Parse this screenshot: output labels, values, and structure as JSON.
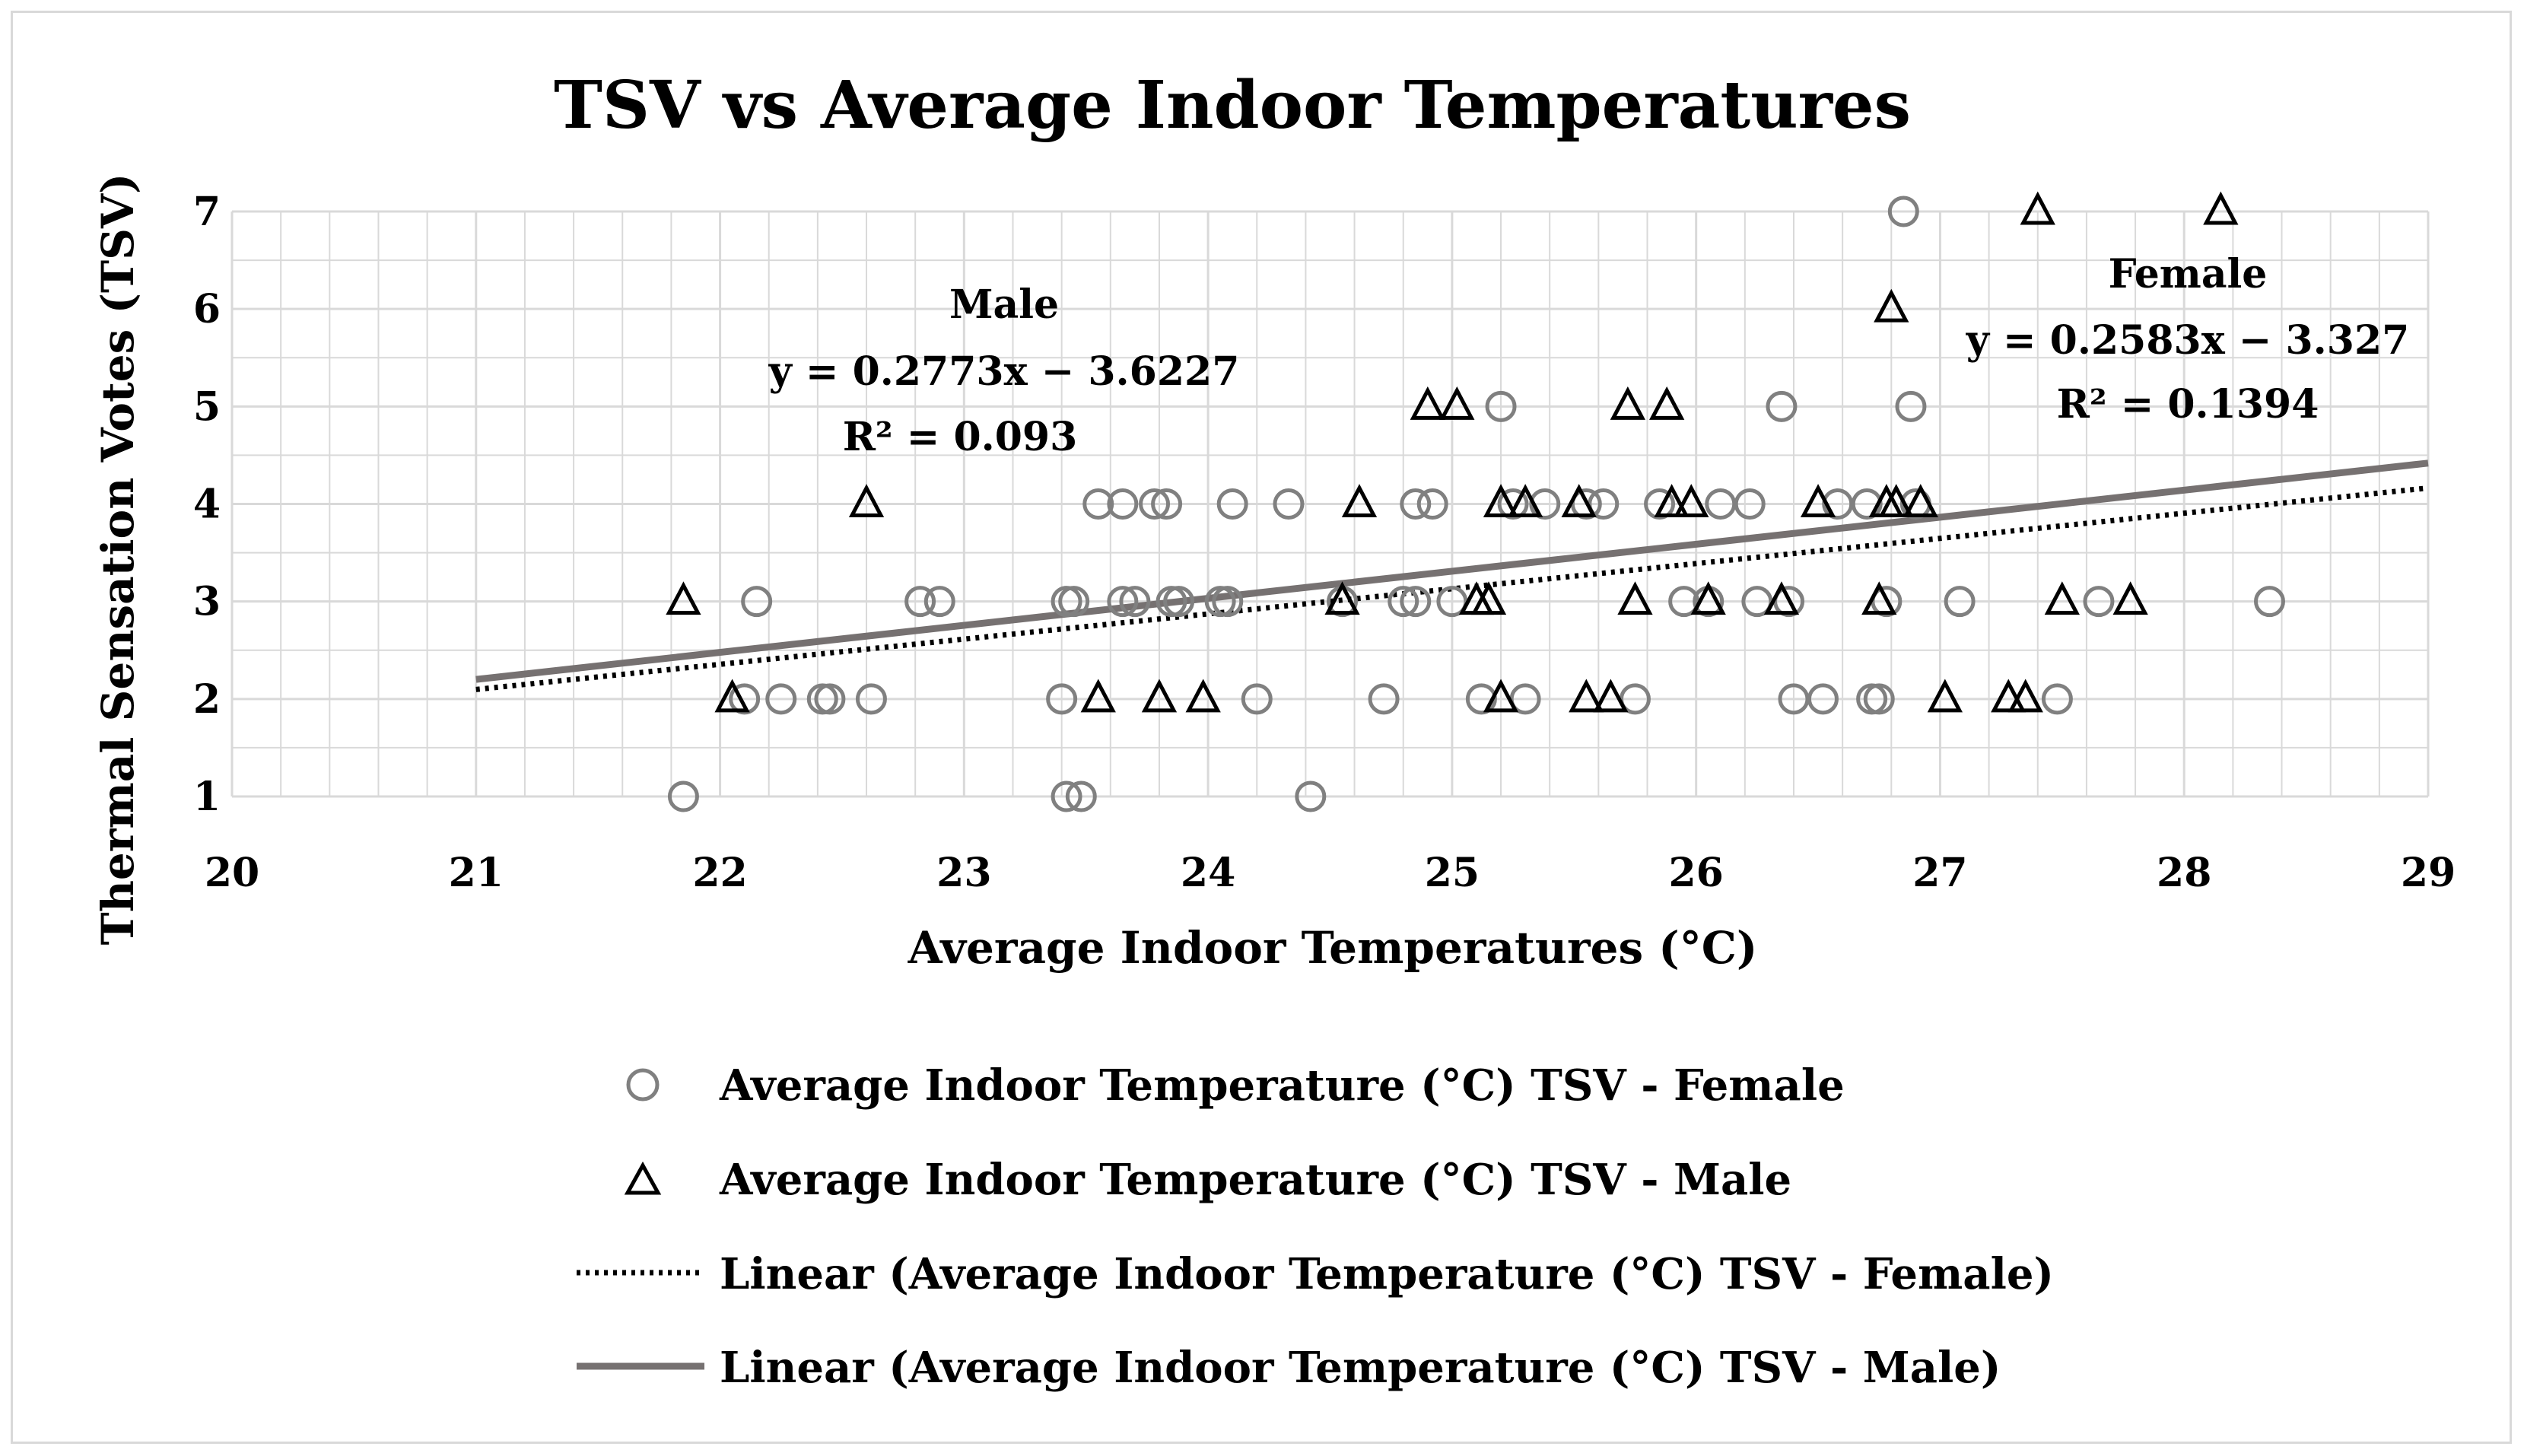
{
  "chart_data": {
    "type": "scatter",
    "title": "TSV vs Average Indoor Temperatures",
    "xlabel": "Average Indoor Temperatures (°C)",
    "ylabel": "Thermal Sensation Votes (TSV)",
    "xlim": [
      20,
      29
    ],
    "ylim": [
      1,
      7
    ],
    "x_ticks": [
      20,
      21,
      22,
      23,
      24,
      25,
      26,
      27,
      28,
      29
    ],
    "y_ticks": [
      1,
      2,
      3,
      4,
      5,
      6,
      7
    ],
    "grid": true,
    "legend_position": "bottom",
    "series": [
      {
        "name": "Average Indoor Temperature (°C) TSV - Female",
        "marker": "circle",
        "color": "#808080",
        "points": [
          [
            21.85,
            1
          ],
          [
            22.1,
            2
          ],
          [
            22.15,
            3
          ],
          [
            22.25,
            2
          ],
          [
            22.42,
            2
          ],
          [
            22.45,
            2
          ],
          [
            22.62,
            2
          ],
          [
            22.82,
            3
          ],
          [
            22.9,
            3
          ],
          [
            23.4,
            2
          ],
          [
            23.42,
            1
          ],
          [
            23.42,
            3
          ],
          [
            23.45,
            3
          ],
          [
            23.48,
            1
          ],
          [
            23.55,
            4
          ],
          [
            23.65,
            4
          ],
          [
            23.65,
            3
          ],
          [
            23.7,
            3
          ],
          [
            23.78,
            4
          ],
          [
            23.83,
            4
          ],
          [
            23.85,
            3
          ],
          [
            23.88,
            3
          ],
          [
            24.05,
            3
          ],
          [
            24.08,
            3
          ],
          [
            24.1,
            4
          ],
          [
            24.2,
            2
          ],
          [
            24.33,
            4
          ],
          [
            24.42,
            1
          ],
          [
            24.55,
            3
          ],
          [
            24.72,
            2
          ],
          [
            24.8,
            3
          ],
          [
            24.85,
            3
          ],
          [
            24.85,
            4
          ],
          [
            24.92,
            4
          ],
          [
            25.0,
            3
          ],
          [
            25.12,
            2
          ],
          [
            25.2,
            5
          ],
          [
            25.25,
            4
          ],
          [
            25.3,
            2
          ],
          [
            25.38,
            4
          ],
          [
            25.55,
            4
          ],
          [
            25.62,
            4
          ],
          [
            25.75,
            2
          ],
          [
            25.85,
            4
          ],
          [
            25.95,
            3
          ],
          [
            26.05,
            3
          ],
          [
            26.1,
            4
          ],
          [
            26.22,
            4
          ],
          [
            26.25,
            3
          ],
          [
            26.35,
            5
          ],
          [
            26.38,
            3
          ],
          [
            26.4,
            2
          ],
          [
            26.52,
            2
          ],
          [
            26.58,
            4
          ],
          [
            26.7,
            4
          ],
          [
            26.72,
            2
          ],
          [
            26.75,
            2
          ],
          [
            26.78,
            3
          ],
          [
            26.85,
            7
          ],
          [
            26.88,
            5
          ],
          [
            26.9,
            4
          ],
          [
            27.08,
            3
          ],
          [
            27.48,
            2
          ],
          [
            27.65,
            3
          ],
          [
            28.35,
            3
          ]
        ],
        "trendline": {
          "equation": "y = 0.2583x − 3.327",
          "r2": "R² = 0.1394",
          "slope": 0.2583,
          "intercept": -3.327,
          "style": "dotted",
          "label": "Female"
        }
      },
      {
        "name": "Average Indoor Temperature (°C) TSV - Male",
        "marker": "triangle",
        "color": "#000000",
        "points": [
          [
            21.85,
            3
          ],
          [
            22.05,
            2
          ],
          [
            22.6,
            4
          ],
          [
            23.55,
            2
          ],
          [
            23.8,
            2
          ],
          [
            23.98,
            2
          ],
          [
            24.55,
            3
          ],
          [
            24.62,
            4
          ],
          [
            24.9,
            5
          ],
          [
            25.02,
            5
          ],
          [
            25.1,
            3
          ],
          [
            25.15,
            3
          ],
          [
            25.2,
            4
          ],
          [
            25.2,
            2
          ],
          [
            25.3,
            4
          ],
          [
            25.52,
            4
          ],
          [
            25.55,
            2
          ],
          [
            25.65,
            2
          ],
          [
            25.72,
            5
          ],
          [
            25.75,
            3
          ],
          [
            25.88,
            5
          ],
          [
            25.9,
            4
          ],
          [
            25.98,
            4
          ],
          [
            26.05,
            3
          ],
          [
            26.35,
            3
          ],
          [
            26.5,
            4
          ],
          [
            26.75,
            3
          ],
          [
            26.78,
            4
          ],
          [
            26.8,
            6
          ],
          [
            26.82,
            4
          ],
          [
            26.92,
            4
          ],
          [
            27.02,
            2
          ],
          [
            27.28,
            2
          ],
          [
            27.35,
            2
          ],
          [
            27.4,
            7
          ],
          [
            27.5,
            3
          ],
          [
            27.78,
            3
          ],
          [
            28.15,
            7
          ]
        ],
        "trendline": {
          "equation": "y = 0.2773x − 3.6227",
          "r2": "R² = 0.093",
          "slope": 0.2773,
          "intercept": -3.6227,
          "style": "solid",
          "label": "Male"
        }
      }
    ],
    "trend_x_range": [
      21,
      29
    ],
    "legend": [
      {
        "label": "Average Indoor Temperature (°C) TSV - Female",
        "symbol": "circle"
      },
      {
        "label": "Average Indoor Temperature (°C) TSV - Male",
        "symbol": "triangle"
      },
      {
        "label": "Linear (Average Indoor Temperature (°C) TSV - Female)",
        "symbol": "dotted-line"
      },
      {
        "label": "Linear (Average Indoor Temperature (°C) TSV - Male)",
        "symbol": "solid-line"
      }
    ],
    "colors": {
      "grid": "#d9d9d9",
      "trend_male": "#767171",
      "trend_female": "#000000",
      "female_marker": "#808080",
      "male_marker": "#000000"
    }
  }
}
